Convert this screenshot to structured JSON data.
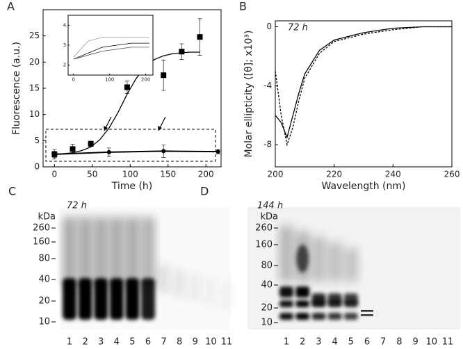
{
  "chart_data": [
    {
      "type": "scatter",
      "panel_label": "A",
      "x_label": "Time (h)",
      "y_label": "Fluorescence (a.u.)",
      "xlim": [
        -15,
        220
      ],
      "ylim": [
        0,
        30
      ],
      "xticks": [
        0,
        50,
        100,
        150,
        200
      ],
      "yticks": [
        0,
        5,
        10,
        15,
        20,
        25
      ],
      "series": [
        {
          "color": "#000000",
          "marker": "square",
          "line": "none",
          "x": [
            0,
            24,
            48,
            96,
            144,
            168,
            192
          ],
          "values": [
            2.4,
            3.4,
            4.4,
            15.2,
            17.5,
            22,
            24.8
          ],
          "errors": [
            0.9,
            0.9,
            0.5,
            1.2,
            2.9,
            1.5,
            3.5
          ]
        },
        {
          "color": "#000000",
          "marker": "none",
          "line": "solid",
          "x": [
            0,
            12,
            24,
            36,
            48,
            60,
            72,
            84,
            96,
            108,
            120,
            132,
            144,
            156,
            168,
            180,
            192
          ],
          "values": [
            2.4,
            2.5,
            2.7,
            3.1,
            3.8,
            5.2,
            7.4,
            10.4,
            13.9,
            16.9,
            19.1,
            20.5,
            21.2,
            21.6,
            21.8,
            21.9,
            21.9
          ]
        },
        {
          "color": "#000000",
          "marker": "circle",
          "line": "solid",
          "x": [
            0,
            72,
            144,
            216
          ],
          "values": [
            2.4,
            2.8,
            3.0,
            2.9
          ],
          "errors": [
            0.6,
            0.8,
            1.2,
            0.4
          ]
        }
      ]
    },
    {
      "type": "line",
      "panel_label": "B",
      "annotation": "72 h",
      "x_label": "Wavelength (nm)",
      "y_label": "Molar ellipticity ([θ]; x10³)",
      "xlim": [
        200,
        260
      ],
      "ylim": [
        -9.5,
        0.4
      ],
      "xticks": [
        200,
        220,
        240,
        260
      ],
      "yticks": [
        0,
        -4,
        -8
      ],
      "series": [
        {
          "color": "#000000",
          "marker": "none",
          "line": "solid",
          "x": [
            200,
            202,
            204,
            206,
            208,
            210,
            215,
            220,
            230,
            240,
            250,
            260
          ],
          "values": [
            -6,
            -6.5,
            -7.5,
            -6,
            -4.5,
            -3.2,
            -1.6,
            -0.9,
            -0.4,
            -0.1,
            0,
            0
          ]
        },
        {
          "color": "#000000",
          "marker": "none",
          "line": "dashed",
          "x": [
            200,
            202,
            204,
            206,
            208,
            210,
            215,
            220,
            230,
            240,
            250,
            260
          ],
          "values": [
            -3,
            -6,
            -8,
            -6.8,
            -5,
            -3.5,
            -1.8,
            -1,
            -0.5,
            -0.2,
            0,
            0
          ]
        }
      ]
    },
    {
      "type": "line",
      "xlim": [
        -15,
        220
      ],
      "ylim": [
        1.5,
        4.5
      ],
      "xticks": [
        0,
        100,
        200
      ],
      "yticks": [
        2,
        3,
        4
      ],
      "series": [
        {
          "color": "#000000",
          "marker": "none",
          "line": "solid",
          "x": [
            0,
            40,
            80,
            120,
            160,
            210
          ],
          "values": [
            2.3,
            2.6,
            2.9,
            3.0,
            3.1,
            3.1
          ]
        },
        {
          "color": "#444444",
          "marker": "none",
          "line": "solid",
          "x": [
            0,
            40,
            80,
            120,
            160,
            210
          ],
          "values": [
            2.3,
            2.5,
            2.7,
            2.8,
            2.9,
            2.9
          ]
        },
        {
          "color": "#999999",
          "marker": "none",
          "line": "solid",
          "x": [
            0,
            40,
            80,
            120,
            160,
            210
          ],
          "values": [
            2.4,
            3.2,
            3.4,
            3.4,
            3.4,
            3.4
          ]
        }
      ]
    }
  ],
  "gels": [
    {
      "panel_label": "C",
      "time": "72 h",
      "unit": "kDa",
      "markers": [
        "260",
        "160",
        "80",
        "40",
        "20",
        "10"
      ],
      "lanes": [
        "1",
        "2",
        "3",
        "4",
        "5",
        "6",
        "7",
        "8",
        "9",
        "10",
        "11"
      ]
    },
    {
      "panel_label": "D",
      "time": "144 h",
      "unit": "kDa",
      "markers": [
        "260",
        "160",
        "80",
        "40",
        "20",
        "10"
      ],
      "lanes": [
        "1",
        "2",
        "3",
        "4",
        "5",
        "6",
        "7",
        "8",
        "9",
        "10",
        "11"
      ]
    }
  ]
}
